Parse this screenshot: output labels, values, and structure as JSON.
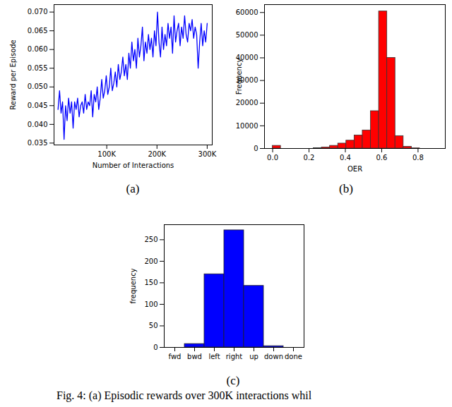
{
  "caption": "Fig. 4: (a) Episodic rewards over 300K interactions whil",
  "chart_data": [
    {
      "type": "line",
      "caption": "(a)",
      "x_label": "Number of Interactions",
      "y_label": "Reward per Episode",
      "color": "#0000ff",
      "x": [
        3000,
        6000,
        9000,
        12000,
        15000,
        18000,
        21000,
        24000,
        27000,
        30000,
        33000,
        36000,
        39000,
        42000,
        45000,
        48000,
        51000,
        54000,
        57000,
        60000,
        63000,
        66000,
        69000,
        72000,
        75000,
        78000,
        81000,
        84000,
        87000,
        90000,
        93000,
        96000,
        99000,
        102000,
        105000,
        108000,
        111000,
        114000,
        117000,
        120000,
        123000,
        126000,
        129000,
        132000,
        135000,
        138000,
        141000,
        144000,
        147000,
        150000,
        153000,
        156000,
        159000,
        162000,
        165000,
        168000,
        171000,
        174000,
        177000,
        180000,
        183000,
        186000,
        189000,
        192000,
        195000,
        198000,
        201000,
        204000,
        207000,
        210000,
        213000,
        216000,
        219000,
        222000,
        225000,
        228000,
        231000,
        234000,
        237000,
        240000,
        243000,
        246000,
        249000,
        252000,
        255000,
        258000,
        261000,
        264000,
        267000,
        270000,
        273000,
        276000,
        279000,
        282000,
        285000,
        288000,
        291000,
        294000,
        297000,
        300000
      ],
      "values": [
        0.044,
        0.049,
        0.043,
        0.046,
        0.036,
        0.045,
        0.041,
        0.047,
        0.043,
        0.046,
        0.039,
        0.046,
        0.044,
        0.047,
        0.042,
        0.045,
        0.046,
        0.043,
        0.048,
        0.044,
        0.046,
        0.045,
        0.049,
        0.042,
        0.048,
        0.046,
        0.05,
        0.044,
        0.047,
        0.052,
        0.047,
        0.049,
        0.053,
        0.048,
        0.05,
        0.055,
        0.049,
        0.051,
        0.054,
        0.05,
        0.056,
        0.052,
        0.054,
        0.058,
        0.053,
        0.056,
        0.052,
        0.059,
        0.055,
        0.062,
        0.057,
        0.06,
        0.055,
        0.063,
        0.058,
        0.061,
        0.066,
        0.057,
        0.062,
        0.059,
        0.064,
        0.06,
        0.063,
        0.058,
        0.065,
        0.061,
        0.07,
        0.062,
        0.058,
        0.066,
        0.06,
        0.064,
        0.061,
        0.067,
        0.063,
        0.066,
        0.059,
        0.069,
        0.062,
        0.065,
        0.067,
        0.061,
        0.066,
        0.063,
        0.069,
        0.064,
        0.062,
        0.067,
        0.065,
        0.068,
        0.063,
        0.066,
        0.064,
        0.055,
        0.062,
        0.067,
        0.061,
        0.065,
        0.062,
        0.067
      ],
      "xlim": [
        -5000,
        310000
      ],
      "xticks": [
        {
          "value": 100000,
          "label": "100K"
        },
        {
          "value": 200000,
          "label": "200K"
        },
        {
          "value": 300000,
          "label": "300K"
        }
      ],
      "ylim": [
        0.0345,
        0.072
      ],
      "yticks": [
        {
          "value": 0.035,
          "label": "0.035"
        },
        {
          "value": 0.04,
          "label": "0.040"
        },
        {
          "value": 0.045,
          "label": "0.045"
        },
        {
          "value": 0.05,
          "label": "0.050"
        },
        {
          "value": 0.055,
          "label": "0.055"
        },
        {
          "value": 0.06,
          "label": "0.060"
        },
        {
          "value": 0.065,
          "label": "0.065"
        },
        {
          "value": 0.07,
          "label": "0.070"
        }
      ]
    },
    {
      "type": "histogram",
      "caption": "(b)",
      "x_label": "OER",
      "y_label": "Frequency",
      "color": "#ff0000",
      "bins": [
        0,
        0.045,
        0.09,
        0.135,
        0.18,
        0.225,
        0.27,
        0.315,
        0.36,
        0.405,
        0.45,
        0.495,
        0.54,
        0.585,
        0.63,
        0.675,
        0.72,
        0.765,
        0.81,
        0.855,
        0.9
      ],
      "values": [
        1200,
        0,
        0,
        0,
        0,
        150,
        500,
        1200,
        2200,
        3500,
        5800,
        8000,
        16500,
        60500,
        40000,
        5500,
        800,
        100,
        0,
        0
      ],
      "xlim": [
        -0.045,
        0.95
      ],
      "xticks": [
        {
          "value": 0,
          "label": "0.0"
        },
        {
          "value": 0.2,
          "label": "0.2"
        },
        {
          "value": 0.4,
          "label": "0.4"
        },
        {
          "value": 0.6,
          "label": "0.6"
        },
        {
          "value": 0.8,
          "label": "0.8"
        }
      ],
      "ylim": [
        0,
        63500
      ],
      "yticks": [
        0,
        10000,
        20000,
        30000,
        40000,
        50000,
        60000
      ]
    },
    {
      "type": "bar",
      "caption": "(c)",
      "y_label": "frequency",
      "color": "#0000ff",
      "categories": [
        "fwd",
        "bwd",
        "left",
        "right",
        "up",
        "down",
        "done"
      ],
      "values": [
        0,
        8,
        170,
        272,
        143,
        3,
        0
      ],
      "ylim": [
        0,
        285
      ],
      "yticks": [
        0,
        50,
        100,
        150,
        200,
        250
      ]
    }
  ]
}
